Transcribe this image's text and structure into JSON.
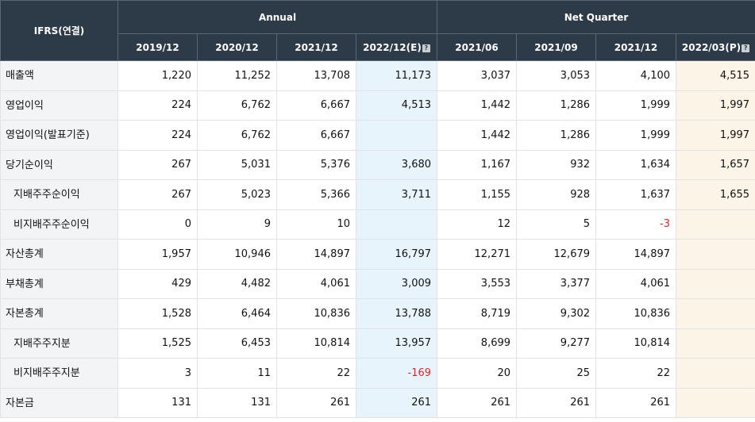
{
  "header": {
    "corner": "IFRS(연결)",
    "groups": [
      {
        "label": "Annual"
      },
      {
        "label": "Net Quarter"
      }
    ],
    "periods": [
      {
        "label": "2019/12"
      },
      {
        "label": "2020/12"
      },
      {
        "label": "2021/12"
      },
      {
        "label": "2022/12(E)",
        "icon": "?"
      },
      {
        "label": "2021/06"
      },
      {
        "label": "2021/09"
      },
      {
        "label": "2021/12"
      },
      {
        "label": "2022/03(P)",
        "icon": "?"
      }
    ]
  },
  "rows": [
    {
      "label": "매출액",
      "values": [
        "1,220",
        "11,252",
        "13,708",
        "11,173",
        "3,037",
        "3,053",
        "4,100",
        "4,515"
      ]
    },
    {
      "label": "영업이익",
      "values": [
        "224",
        "6,762",
        "6,667",
        "4,513",
        "1,442",
        "1,286",
        "1,999",
        "1,997"
      ]
    },
    {
      "label": "영업이익(발표기준)",
      "values": [
        "224",
        "6,762",
        "6,667",
        "",
        "1,442",
        "1,286",
        "1,999",
        "1,997"
      ]
    },
    {
      "label": "당기순이익",
      "values": [
        "267",
        "5,031",
        "5,376",
        "3,680",
        "1,167",
        "932",
        "1,634",
        "1,657"
      ]
    },
    {
      "label": "지배주주순이익",
      "values": [
        "267",
        "5,023",
        "5,366",
        "3,711",
        "1,155",
        "928",
        "1,637",
        "1,655"
      ]
    },
    {
      "label": "비지배주주순이익",
      "values": [
        "0",
        "9",
        "10",
        "",
        "12",
        "5",
        "-3",
        ""
      ]
    },
    {
      "label": "자산총계",
      "values": [
        "1,957",
        "10,946",
        "14,897",
        "16,797",
        "12,271",
        "12,679",
        "14,897",
        ""
      ]
    },
    {
      "label": "부채총계",
      "values": [
        "429",
        "4,482",
        "4,061",
        "3,009",
        "3,553",
        "3,377",
        "4,061",
        ""
      ]
    },
    {
      "label": "자본총계",
      "values": [
        "1,528",
        "6,464",
        "10,836",
        "13,788",
        "8,719",
        "9,302",
        "10,836",
        ""
      ]
    },
    {
      "label": "지배주주지분",
      "values": [
        "1,525",
        "6,453",
        "10,814",
        "13,957",
        "8,699",
        "9,277",
        "10,814",
        ""
      ]
    },
    {
      "label": "비지배주주지분",
      "values": [
        "3",
        "11",
        "22",
        "-169",
        "20",
        "25",
        "22",
        ""
      ]
    },
    {
      "label": "자본금",
      "values": [
        "131",
        "131",
        "261",
        "261",
        "261",
        "261",
        "261",
        ""
      ]
    }
  ],
  "colors": {
    "header_bg": "#2d3b48",
    "label_bg": "#f3f4f6",
    "estimate_bg": "#e8f4fb",
    "provisional_bg": "#fdf4e8",
    "negative": "#e0262c"
  }
}
